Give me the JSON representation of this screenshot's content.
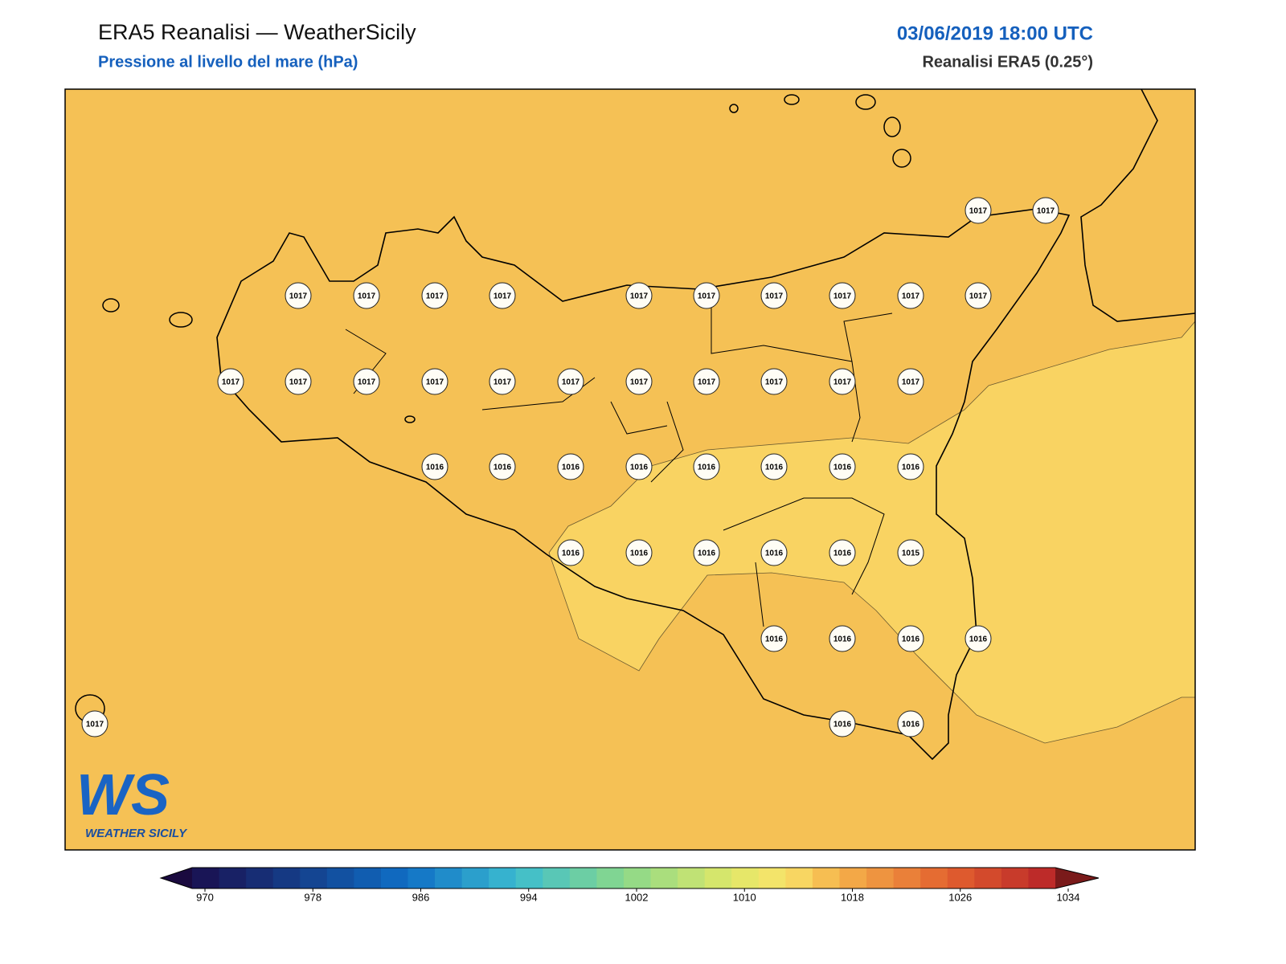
{
  "header": {
    "title": "ERA5 Reanalisi — WeatherSicily",
    "subtitle": "Pressione al livello del mare (hPa)",
    "datetime": "03/06/2019 18:00 UTC",
    "source": "Reanalisi ERA5 (0.25°)"
  },
  "stations": [
    {
      "value": 1017
    },
    {
      "value": 1017
    },
    {
      "value": 1017
    },
    {
      "value": 1017
    },
    {
      "value": 1017
    },
    {
      "value": 1017
    },
    {
      "value": 1017
    },
    {
      "value": 1017
    },
    {
      "value": 1017
    },
    {
      "value": 1017
    },
    {
      "value": 1017
    },
    {
      "value": 1017
    },
    {
      "value": 1017
    },
    {
      "value": 1017
    },
    {
      "value": 1017
    },
    {
      "value": 1017
    },
    {
      "value": 1017
    },
    {
      "value": 1017
    },
    {
      "value": 1017
    },
    {
      "value": 1017
    },
    {
      "value": 1017
    },
    {
      "value": 1017
    },
    {
      "value": 1017
    },
    {
      "value": 1016
    },
    {
      "value": 1016
    },
    {
      "value": 1016
    },
    {
      "value": 1016
    },
    {
      "value": 1016
    },
    {
      "value": 1016
    },
    {
      "value": 1016
    },
    {
      "value": 1016
    },
    {
      "value": 1016
    },
    {
      "value": 1016
    },
    {
      "value": 1016
    },
    {
      "value": 1016
    },
    {
      "value": 1016
    },
    {
      "value": 1015
    },
    {
      "value": 1016
    },
    {
      "value": 1016
    },
    {
      "value": 1016
    },
    {
      "value": 1016
    },
    {
      "value": 1017
    },
    {
      "value": 1016
    },
    {
      "value": 1016
    }
  ],
  "colorbar": {
    "ticks": [
      970,
      978,
      986,
      994,
      1002,
      1010,
      1018,
      1026,
      1034
    ]
  },
  "logo": {
    "mark": "WS",
    "text": "WEATHER SICILY"
  }
}
